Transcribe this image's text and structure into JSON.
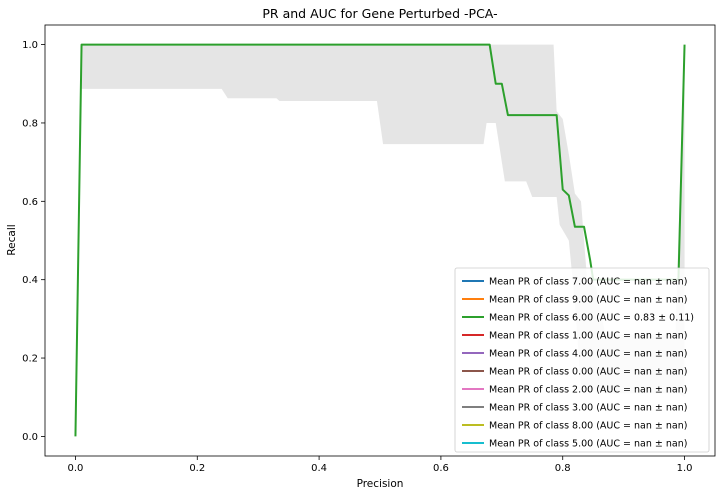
{
  "chart_data": {
    "type": "line",
    "title": "PR and AUC for Gene Perturbed -PCA-",
    "xlabel": "Precision",
    "ylabel": "Recall",
    "xlim": [
      -0.05,
      1.05
    ],
    "ylim": [
      -0.05,
      1.05
    ],
    "x_ticks": [
      0.0,
      0.2,
      0.4,
      0.6,
      0.8,
      1.0
    ],
    "x_tick_labels": [
      "0.0",
      "0.2",
      "0.4",
      "0.6",
      "0.8",
      "1.0"
    ],
    "y_ticks": [
      0.0,
      0.2,
      0.4,
      0.6,
      0.8,
      1.0
    ],
    "y_tick_labels": [
      "0.0",
      "0.2",
      "0.4",
      "0.6",
      "0.8",
      "1.0"
    ],
    "grid": false,
    "legend_position": "lower-right",
    "band": {
      "color": "#d3d3d3",
      "upper": [
        [
          0.01,
          1.0
        ],
        [
          0.785,
          1.0
        ],
        [
          0.79,
          0.83
        ],
        [
          0.8,
          0.81
        ],
        [
          0.81,
          0.72
        ],
        [
          0.82,
          0.62
        ],
        [
          0.83,
          0.6
        ],
        [
          0.84,
          0.4
        ],
        [
          0.855,
          0.38
        ],
        [
          0.87,
          0.26
        ],
        [
          0.9,
          0.26
        ],
        [
          0.985,
          0.26
        ],
        [
          1.0,
          1.0
        ]
      ],
      "lower": [
        [
          0.01,
          0.887
        ],
        [
          0.24,
          0.887
        ],
        [
          0.25,
          0.863
        ],
        [
          0.33,
          0.863
        ],
        [
          0.335,
          0.856
        ],
        [
          0.495,
          0.856
        ],
        [
          0.505,
          0.746
        ],
        [
          0.67,
          0.746
        ],
        [
          0.675,
          0.8
        ],
        [
          0.69,
          0.8
        ],
        [
          0.705,
          0.651
        ],
        [
          0.74,
          0.651
        ],
        [
          0.75,
          0.611
        ],
        [
          0.79,
          0.611
        ],
        [
          0.795,
          0.54
        ],
        [
          0.81,
          0.5
        ],
        [
          0.82,
          0.34
        ],
        [
          0.83,
          0.12
        ],
        [
          0.85,
          0.12
        ],
        [
          0.87,
          0.11
        ],
        [
          0.99,
          0.11
        ],
        [
          1.0,
          0.1
        ]
      ]
    },
    "series": [
      {
        "name": "Mean PR of class 7.00 (AUC = nan ± nan)",
        "color": "#1f77b4",
        "x": [],
        "y": []
      },
      {
        "name": "Mean PR of class 9.00 (AUC = nan ± nan)",
        "color": "#ff7f0e",
        "x": [],
        "y": []
      },
      {
        "name": "Mean PR of class 6.00 (AUC = 0.83 ± 0.11)",
        "color": "#2ca02c",
        "x": [
          0.0,
          0.01,
          0.68,
          0.69,
          0.7,
          0.71,
          0.79,
          0.8,
          0.81,
          0.82,
          0.835,
          0.845,
          0.85,
          0.99,
          1.0
        ],
        "y": [
          0.0,
          1.0,
          1.0,
          0.9,
          0.9,
          0.82,
          0.82,
          0.63,
          0.615,
          0.535,
          0.535,
          0.45,
          0.4,
          0.4,
          1.0
        ]
      },
      {
        "name": "Mean PR of class 1.00 (AUC = nan ± nan)",
        "color": "#d62728",
        "x": [],
        "y": []
      },
      {
        "name": "Mean PR of class 4.00 (AUC = nan ± nan)",
        "color": "#9467bd",
        "x": [],
        "y": []
      },
      {
        "name": "Mean PR of class 0.00 (AUC = nan ± nan)",
        "color": "#8c564b",
        "x": [],
        "y": []
      },
      {
        "name": "Mean PR of class 2.00 (AUC = nan ± nan)",
        "color": "#e377c2",
        "x": [],
        "y": []
      },
      {
        "name": "Mean PR of class 3.00 (AUC = nan ± nan)",
        "color": "#7f7f7f",
        "x": [],
        "y": []
      },
      {
        "name": "Mean PR of class 8.00 (AUC = nan ± nan)",
        "color": "#bcbd22",
        "x": [],
        "y": []
      },
      {
        "name": "Mean PR of class 5.00 (AUC = nan ± nan)",
        "color": "#17becf",
        "x": [],
        "y": []
      }
    ]
  }
}
